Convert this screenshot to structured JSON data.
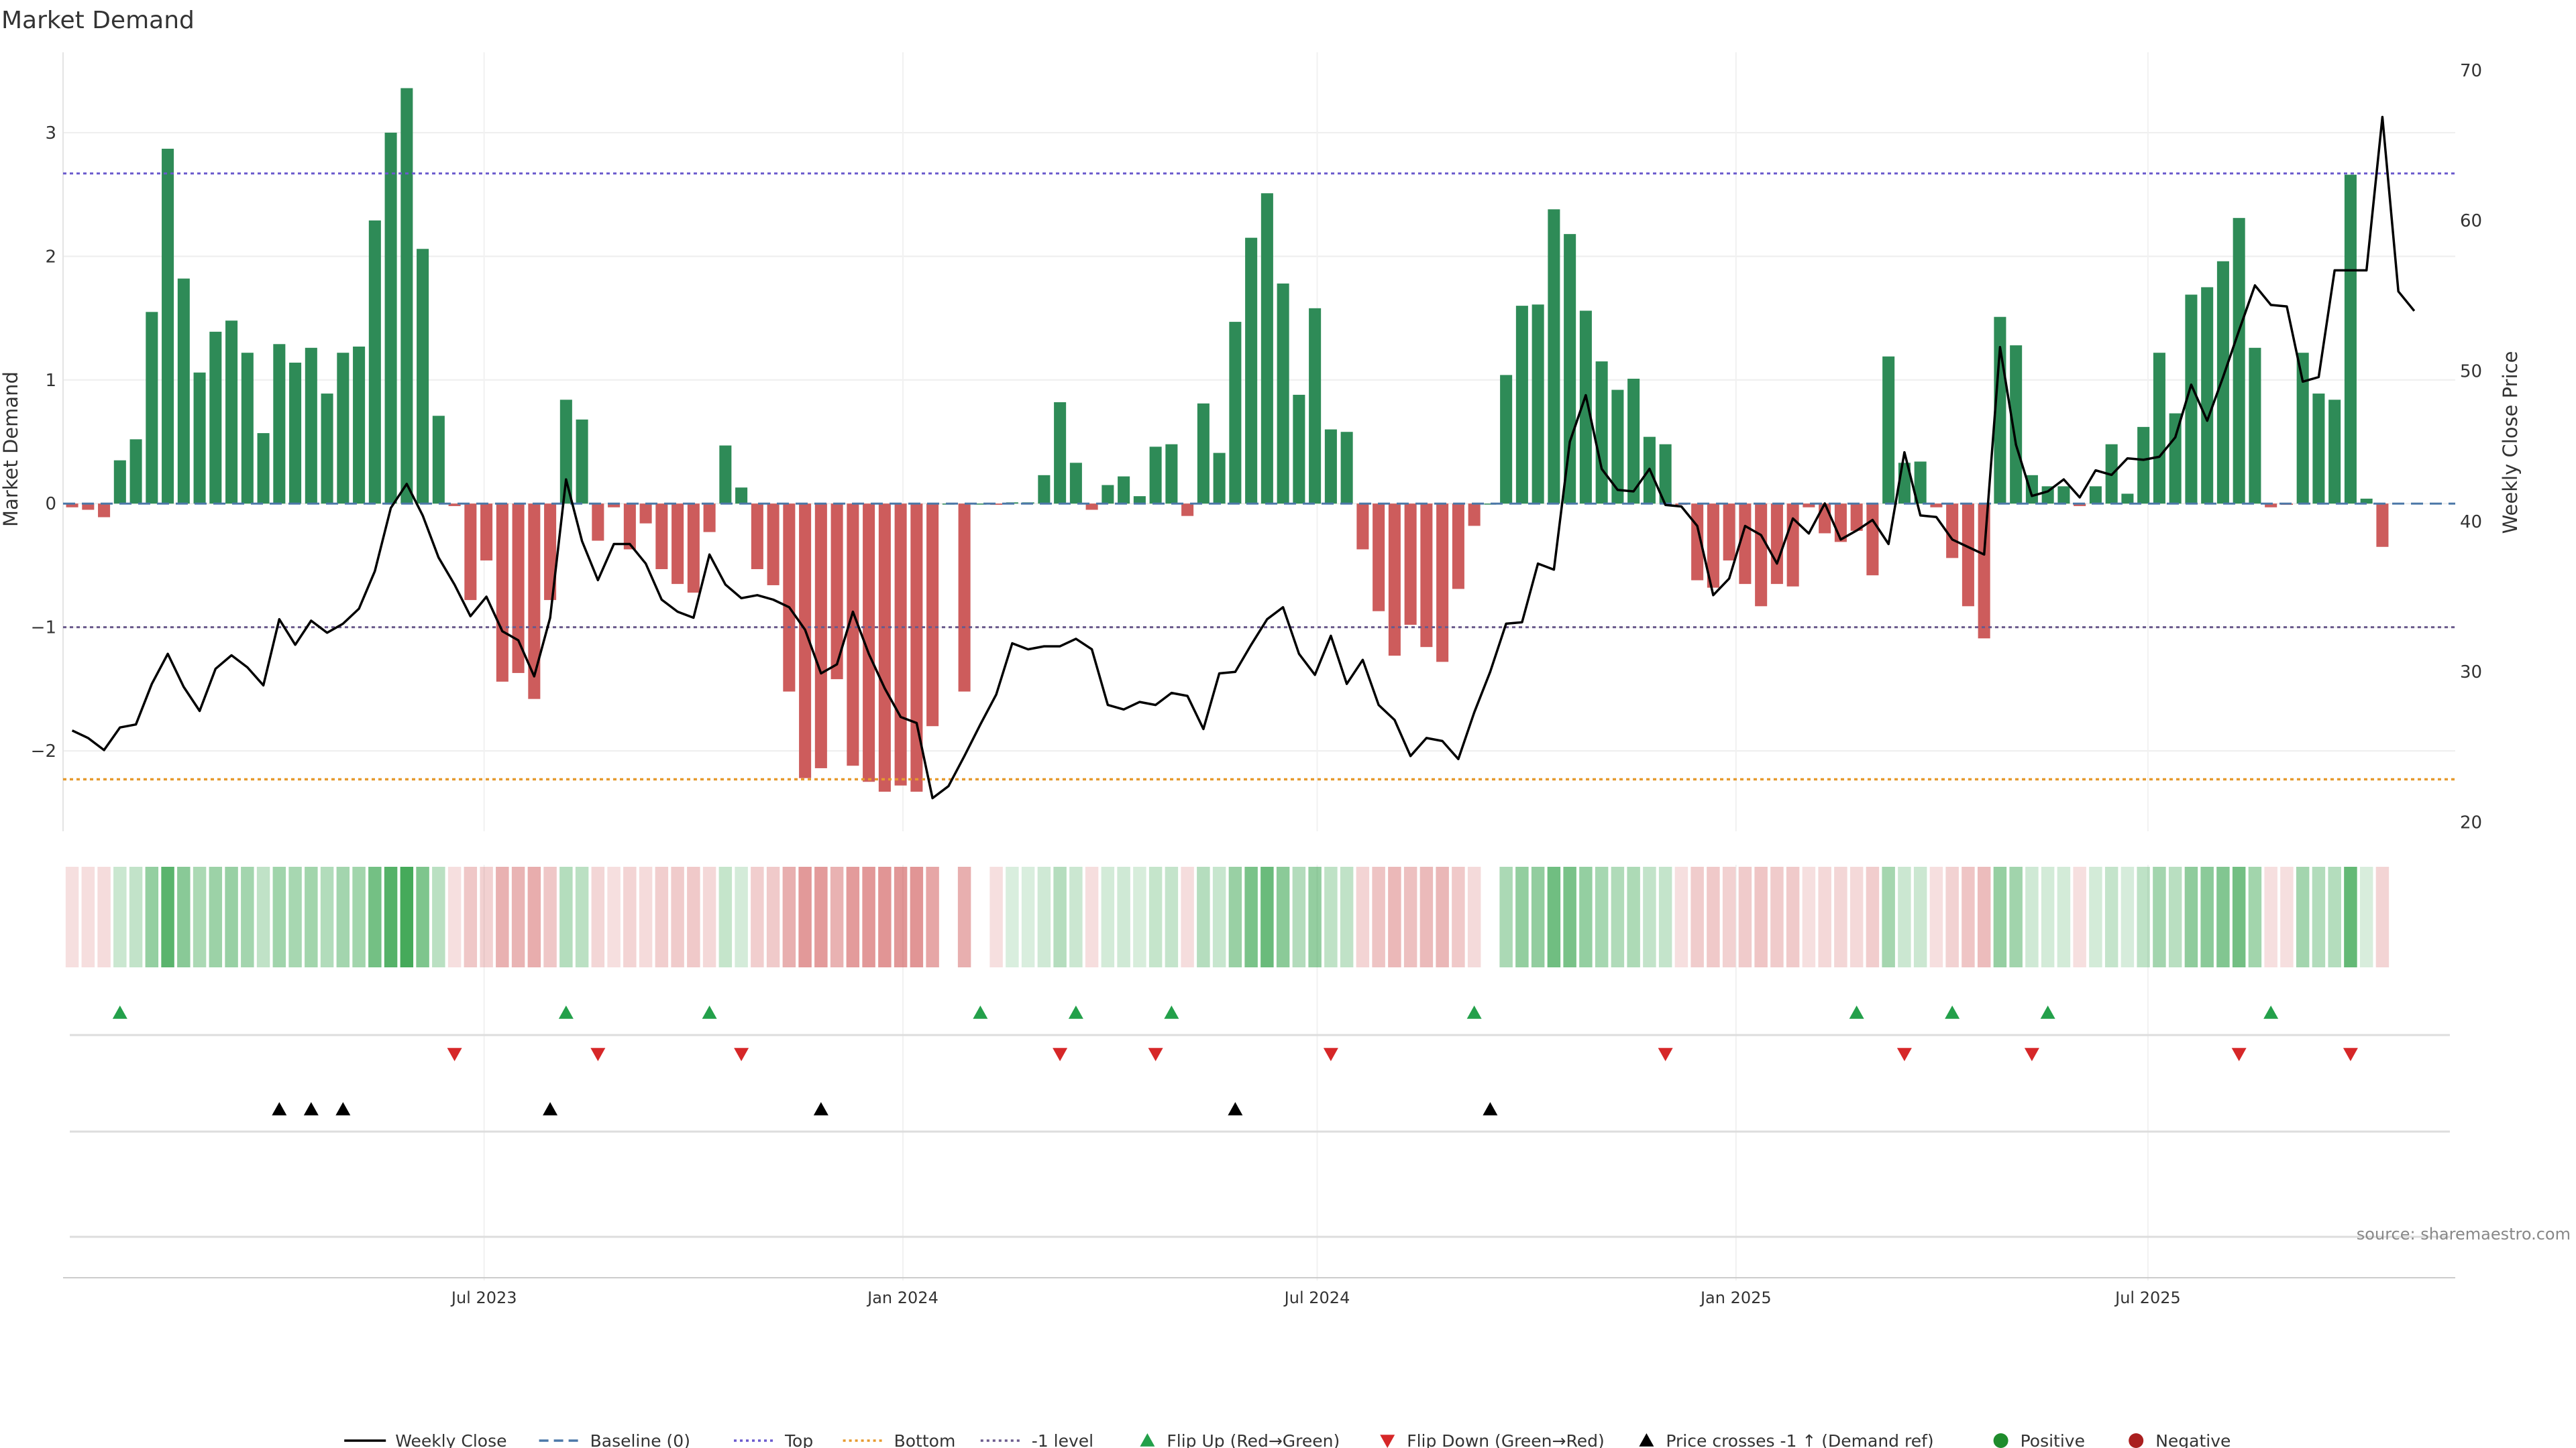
{
  "title": "Market Demand",
  "source": "source: sharemaestro.com",
  "colors": {
    "positive": "#2e8b57",
    "negative": "#cd5c5c",
    "price": "#000000",
    "baseline": "#4c78a8",
    "top": "#6a5acd",
    "bottom": "#e69a2e",
    "minus1": "#6a5a8c",
    "flip_up": "#23a04a",
    "flip_down": "#d62728",
    "cross": "#000000",
    "dot_pos": "#1e8c2c",
    "dot_neg": "#aa1f1f"
  },
  "chart_data": {
    "type": "bar",
    "title": "Market Demand",
    "ylabel": "Market Demand",
    "y2label": "Weekly Close Price",
    "ylim": [
      -2.65,
      3.65
    ],
    "y2lim": [
      19.4,
      71.2
    ],
    "yticks": [
      -2,
      -1,
      0,
      1,
      2,
      3
    ],
    "ytick_labels": [
      "−2",
      "−1",
      "0",
      "1",
      "2",
      "3"
    ],
    "y2ticks": [
      20,
      30,
      40,
      50,
      60,
      70
    ],
    "x_start": "2023-01-01",
    "x_step_days": 7,
    "xlim": [
      "2022-12-28",
      "2025-11-13"
    ],
    "xticks": [
      "2023-07-01",
      "2024-01-01",
      "2024-07-01",
      "2025-01-01",
      "2025-07-01"
    ],
    "xtick_labels": [
      "Jul 2023",
      "Jan 2024",
      "Jul 2024",
      "Jan 2025",
      "Jul 2025"
    ],
    "reference_lines": {
      "baseline": 0,
      "top": 2.67,
      "bottom": -2.23,
      "minus1": -1.0
    },
    "demand": [
      -0.03,
      -0.05,
      -0.11,
      0.35,
      0.52,
      1.55,
      2.87,
      1.82,
      1.06,
      1.39,
      1.48,
      1.22,
      0.57,
      1.29,
      1.14,
      1.26,
      0.89,
      1.22,
      1.27,
      2.29,
      3.0,
      3.36,
      2.06,
      0.71,
      -0.02,
      -0.78,
      -0.46,
      -1.44,
      -1.37,
      -1.58,
      -0.78,
      0.84,
      0.68,
      -0.3,
      -0.03,
      -0.37,
      -0.16,
      -0.53,
      -0.65,
      -0.72,
      -0.23,
      0.47,
      0.13,
      -0.53,
      -0.66,
      -1.52,
      -2.22,
      -2.14,
      -1.42,
      -2.12,
      -2.25,
      -2.33,
      -2.28,
      -2.33,
      -1.8,
      0.0,
      -1.52,
      0.0,
      -0.01,
      0.01,
      0.01,
      0.23,
      0.82,
      0.33,
      -0.05,
      0.15,
      0.22,
      0.06,
      0.46,
      0.48,
      -0.1,
      0.81,
      0.41,
      1.47,
      2.15,
      2.51,
      1.78,
      0.88,
      1.58,
      0.6,
      0.58,
      -0.37,
      -0.87,
      -1.23,
      -0.98,
      -1.16,
      -1.28,
      -0.69,
      -0.18,
      0.0,
      1.04,
      1.6,
      1.61,
      2.38,
      2.18,
      1.56,
      1.15,
      0.92,
      1.01,
      0.54,
      0.48,
      -0.01,
      -0.62,
      -0.68,
      -0.46,
      -0.65,
      -0.83,
      -0.65,
      -0.67,
      -0.03,
      -0.24,
      -0.31,
      -0.22,
      -0.58,
      1.19,
      0.33,
      0.34,
      -0.03,
      -0.44,
      -0.83,
      -1.09,
      1.51,
      1.28,
      0.23,
      0.14,
      0.14,
      -0.02,
      0.14,
      0.48,
      0.08,
      0.62,
      1.22,
      0.73,
      1.69,
      1.75,
      1.96,
      2.31,
      1.26,
      -0.03,
      -0.01,
      1.22,
      0.89,
      0.84,
      2.66,
      0.04,
      -0.35
    ],
    "price": [
      26.1,
      25.6,
      24.8,
      26.3,
      26.5,
      29.2,
      31.2,
      29.0,
      27.4,
      30.2,
      31.1,
      30.3,
      29.1,
      33.5,
      31.8,
      33.4,
      32.6,
      33.2,
      34.2,
      36.7,
      40.9,
      42.5,
      40.4,
      37.6,
      35.8,
      33.7,
      35.0,
      32.7,
      32.1,
      29.7,
      33.6,
      42.8,
      38.7,
      36.1,
      38.5,
      38.5,
      37.2,
      34.8,
      34.0,
      33.6,
      37.8,
      35.8,
      34.9,
      35.1,
      34.8,
      34.3,
      32.8,
      29.9,
      30.5,
      34.0,
      31.2,
      28.9,
      27.0,
      26.6,
      21.6,
      22.4,
      24.4,
      26.5,
      28.5,
      31.9,
      31.5,
      31.7,
      31.7,
      32.2,
      31.5,
      27.8,
      27.5,
      28.0,
      27.8,
      28.6,
      28.4,
      26.2,
      29.9,
      30.0,
      31.8,
      33.5,
      34.3,
      31.2,
      29.8,
      32.4,
      29.2,
      30.8,
      27.8,
      26.8,
      24.4,
      25.6,
      25.4,
      24.2,
      27.3,
      30.0,
      33.2,
      33.3,
      37.2,
      36.8,
      45.3,
      48.4,
      43.5,
      42.1,
      42.0,
      43.5,
      41.1,
      41.0,
      39.7,
      35.1,
      36.2,
      39.7,
      39.1,
      37.2,
      40.2,
      39.2,
      41.2,
      38.8,
      39.4,
      40.1,
      38.5,
      44.6,
      40.4,
      40.3,
      38.8,
      38.3,
      37.8,
      51.6,
      45.1,
      41.7,
      42.0,
      42.8,
      41.6,
      43.4,
      43.1,
      44.2,
      44.1,
      44.3,
      45.6,
      49.1,
      46.7,
      49.6,
      52.7,
      55.7,
      54.4,
      54.3,
      49.3,
      49.6,
      56.7,
      56.7,
      56.7,
      66.9,
      55.3,
      54.0
    ],
    "flip_up_weeks": [
      3,
      31,
      40,
      57,
      63,
      69,
      88,
      112,
      118,
      124,
      138
    ],
    "flip_down_weeks": [
      24,
      33,
      42,
      62,
      68,
      79,
      100,
      115,
      123,
      136,
      143
    ],
    "cross_up_weeks": [
      13,
      15,
      17,
      30,
      47,
      73,
      89
    ]
  },
  "legend": [
    {
      "label": "Weekly Close",
      "kind": "line-solid",
      "color": "#000000"
    },
    {
      "label": "Baseline (0)",
      "kind": "line-dashed",
      "color": "#4c78a8"
    },
    {
      "label": "Top",
      "kind": "line-dotted",
      "color": "#6a5acd"
    },
    {
      "label": "Bottom",
      "kind": "line-dotted",
      "color": "#e69a2e"
    },
    {
      "label": "-1 level",
      "kind": "line-dotted",
      "color": "#6a5a8c"
    },
    {
      "label": "Flip Up (Red→Green)",
      "kind": "tri-up",
      "color": "#23a04a"
    },
    {
      "label": "Flip Down (Green→Red)",
      "kind": "tri-down",
      "color": "#d62728"
    },
    {
      "label": "Price crosses -1 ↑ (Demand ref)",
      "kind": "tri-up",
      "color": "#000000"
    },
    {
      "label": "Positive",
      "kind": "dot",
      "color": "#1e8c2c"
    },
    {
      "label": "Negative",
      "kind": "dot",
      "color": "#aa1f1f"
    }
  ]
}
